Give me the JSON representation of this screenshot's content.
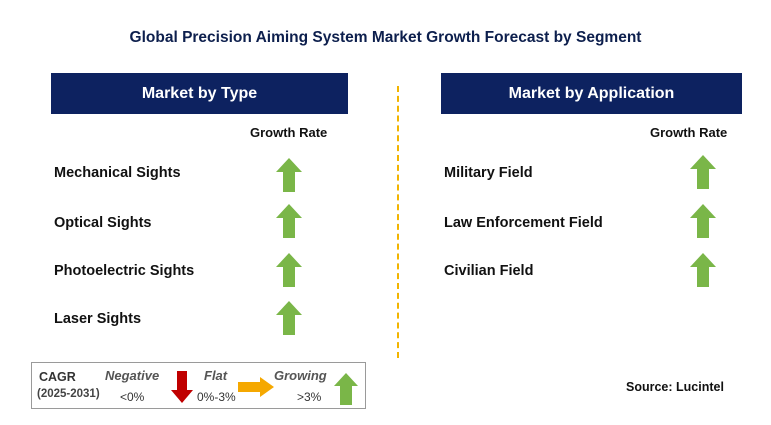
{
  "title": "Global Precision Aiming System Market Growth Forecast by Segment",
  "left_panel": {
    "header": "Market by Type",
    "growth_label": "Growth Rate",
    "items": [
      {
        "label": "Mechanical Sights",
        "trend": "growing"
      },
      {
        "label": "Optical Sights",
        "trend": "growing"
      },
      {
        "label": "Photoelectric Sights",
        "trend": "growing"
      },
      {
        "label": "Laser Sights",
        "trend": "growing"
      }
    ]
  },
  "right_panel": {
    "header": "Market by Application",
    "growth_label": "Growth Rate",
    "items": [
      {
        "label": "Military Field",
        "trend": "growing"
      },
      {
        "label": "Law Enforcement Field",
        "trend": "growing"
      },
      {
        "label": "Civilian Field",
        "trend": "growing"
      }
    ]
  },
  "legend": {
    "cagr_label": "CAGR",
    "period": "(2025-2031)",
    "negative": {
      "label": "Negative",
      "range": "<0%",
      "icon": "red-down-arrow-icon"
    },
    "flat": {
      "label": "Flat",
      "range": "0%-3%",
      "icon": "orange-right-arrow-icon"
    },
    "growing": {
      "label": "Growing",
      "range": ">3%",
      "icon": "green-up-arrow-icon"
    }
  },
  "source": "Source: Lucintel",
  "colors": {
    "header_bg": "#0d2260",
    "growing": "#7ab648",
    "negative": "#c00000",
    "flat": "#f5a800",
    "divider": "#f2b400"
  }
}
